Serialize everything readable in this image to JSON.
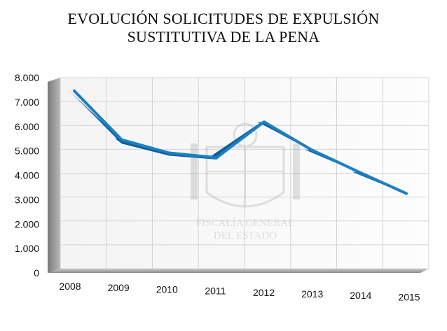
{
  "chart_data": {
    "type": "line",
    "title": "EVOLUCIÓN SOLICITUDES DE EXPULSIÓN SUSTITUTIVA DE LA PENA",
    "title_lines": [
      "EVOLUCIÓN SOLICITUDES DE EXPULSIÓN",
      "SUSTITUTIVA DE LA PENA"
    ],
    "x": [
      "2008",
      "2009",
      "2010",
      "2011",
      "2012",
      "2013",
      "2014",
      "2015"
    ],
    "series": [
      {
        "values": [
          7450,
          5400,
          4850,
          4650,
          6150,
          4980,
          4050,
          3150
        ]
      }
    ],
    "xlabel": "",
    "ylabel": "",
    "ylim": [
      0,
      8000
    ],
    "yticks": [
      0,
      1000,
      2000,
      3000,
      4000,
      5000,
      6000,
      7000,
      8000
    ],
    "ytick_labels": [
      "0",
      "1.000",
      "2.000",
      "3.000",
      "4.000",
      "5.000",
      "6.000",
      "7.000",
      "8.000"
    ],
    "grid": true,
    "legend": "none",
    "line_color": "#1b7fc4",
    "watermark_text": [
      "FISCALÍA GENERAL",
      "DEL ESTADO"
    ]
  }
}
